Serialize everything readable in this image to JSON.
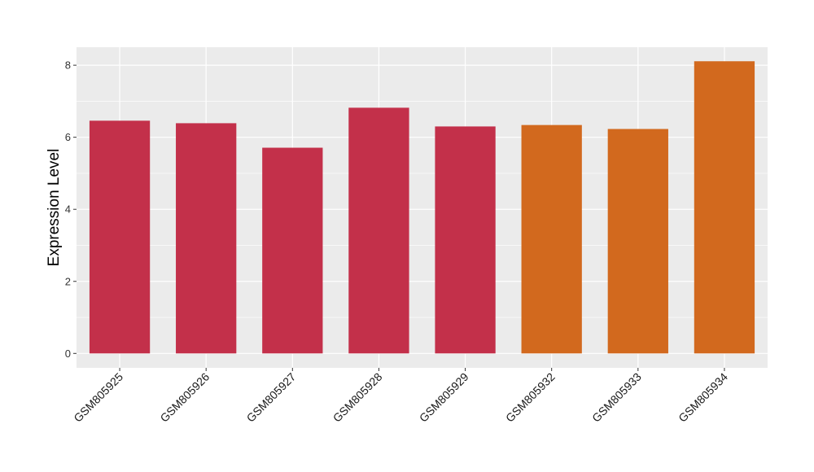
{
  "chart_data": {
    "type": "bar",
    "title": "",
    "xlabel": "",
    "ylabel": "Expression Level",
    "ylim": [
      -0.4,
      8.5
    ],
    "yticks": [
      0,
      2,
      4,
      6,
      8
    ],
    "grid": true,
    "legend": "none",
    "categories": [
      "GSM805925",
      "GSM805926",
      "GSM805927",
      "GSM805928",
      "GSM805929",
      "GSM805932",
      "GSM805933",
      "GSM805934"
    ],
    "values": [
      6.46,
      6.39,
      5.71,
      6.82,
      6.3,
      6.34,
      6.23,
      8.11
    ],
    "groups": [
      "group1",
      "group1",
      "group1",
      "group1",
      "group1",
      "group2",
      "group2",
      "group2"
    ],
    "colors": {
      "group1": "#C3304A",
      "group2": "#D2691E"
    },
    "panel_background": "#EBEBEB",
    "grid_color": "#FFFFFF"
  }
}
